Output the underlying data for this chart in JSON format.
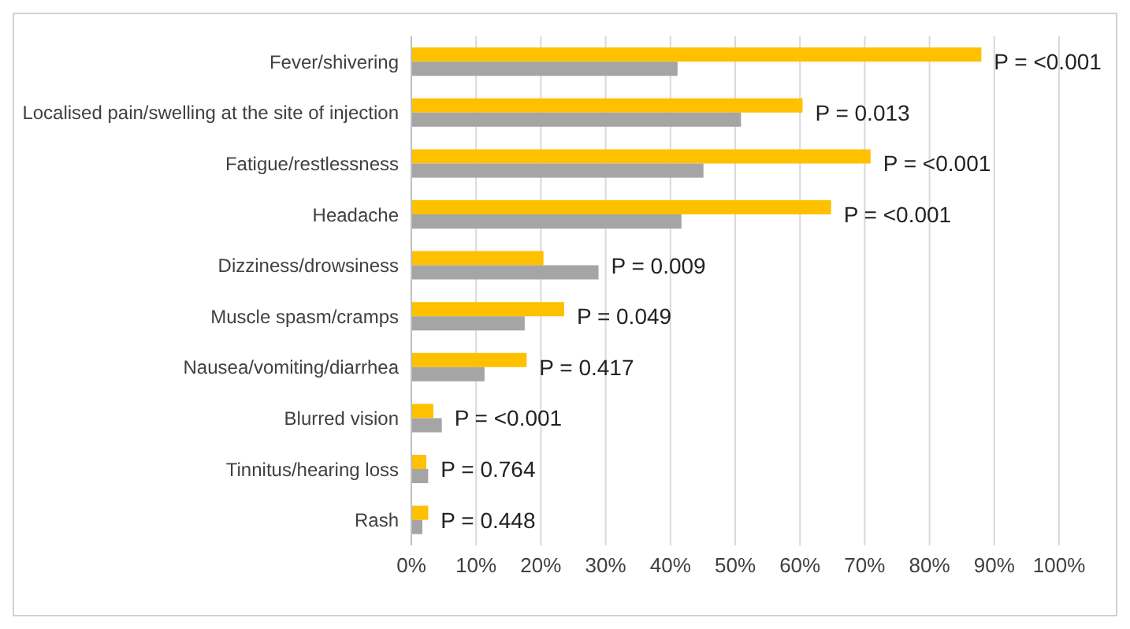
{
  "chart_data": {
    "type": "bar",
    "orientation": "horizontal",
    "categories": [
      "Fever/shivering",
      "Localised pain/swelling at the site of injection",
      "Fatigue/restlessness",
      "Headache",
      "Dizziness/drowsiness",
      "Muscle spasm/cramps",
      "Nausea/vomiting/diarrhea",
      "Blurred vision",
      "Tinnitus/hearing loss",
      "Rash"
    ],
    "series": [
      {
        "color": "#ffc000",
        "values": [
          88.0,
          60.4,
          70.9,
          64.8,
          20.4,
          23.6,
          17.8,
          3.4,
          2.3,
          2.6
        ]
      },
      {
        "color": "#a5a5a5",
        "values": [
          41.1,
          50.9,
          45.1,
          41.7,
          28.9,
          17.5,
          11.3,
          4.7,
          2.6,
          1.7
        ]
      }
    ],
    "xlim": [
      0,
      100
    ],
    "xticks": [
      {
        "value": 0,
        "label": "0%"
      },
      {
        "value": 10,
        "label": "10%"
      },
      {
        "value": 20,
        "label": "20%"
      },
      {
        "value": 30,
        "label": "30%"
      },
      {
        "value": 40,
        "label": "40%"
      },
      {
        "value": 50,
        "label": "50%"
      },
      {
        "value": 60,
        "label": "60%"
      },
      {
        "value": 70,
        "label": "70%"
      },
      {
        "value": 80,
        "label": "80%"
      },
      {
        "value": 90,
        "label": "90%"
      },
      {
        "value": 100,
        "label": "100%"
      }
    ],
    "grid": "x",
    "legend": false,
    "annotations": [
      {
        "text": "P = <0.001",
        "x": 88.0,
        "y": "Fever/shivering"
      },
      {
        "text": "P = 0.013",
        "x": 60.4,
        "y": "Localised pain/swelling at the site of injection"
      },
      {
        "text": "P = <0.001",
        "x": 70.9,
        "y": "Fatigue/restlessness"
      },
      {
        "text": "P = <0.001",
        "x": 64.8,
        "y": "Headache"
      },
      {
        "text": "P = 0.009",
        "x": 28.9,
        "y": "Dizziness/drowsiness"
      },
      {
        "text": "P = 0.049",
        "x": 23.6,
        "y": "Muscle spasm/cramps"
      },
      {
        "text": "P = 0.417",
        "x": 17.8,
        "y": "Nausea/vomiting/diarrhea"
      },
      {
        "text": "P = <0.001",
        "x": 4.7,
        "y": "Blurred vision"
      },
      {
        "text": "P = 0.764",
        "x": 2.6,
        "y": "Tinnitus/hearing loss"
      },
      {
        "text": "P = 0.448",
        "x": 2.6,
        "y": "Rash"
      }
    ]
  }
}
